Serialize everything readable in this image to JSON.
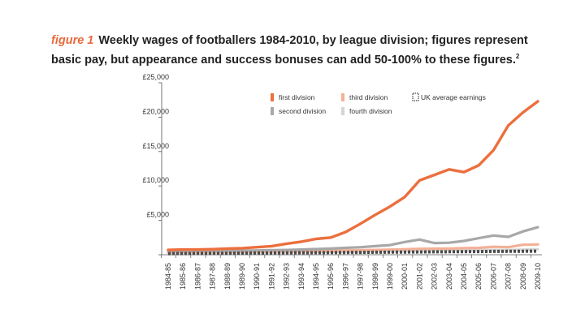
{
  "caption": {
    "figure_label": "figure 1",
    "text": "Weekly wages of footballers 1984-2010, by league division; figures represent basic pay, but appearance and success bonuses can add 50-100% to these figures.",
    "footnote": "2"
  },
  "chart_data": {
    "type": "line",
    "title": "Weekly wages of footballers 1984-2010, by league division",
    "xlabel": "",
    "ylabel": "",
    "ylim": [
      0,
      25000
    ],
    "y_ticks": [
      0,
      5000,
      10000,
      15000,
      20000,
      25000
    ],
    "y_tick_labels": [
      "",
      "£5,000",
      "£10,000",
      "£15,000",
      "£20,000",
      "£25,000"
    ],
    "grid": false,
    "legend_placement": "top",
    "categories": [
      "1984-85",
      "1985-86",
      "1986-87",
      "1987-88",
      "1988-89",
      "1989-90",
      "1990-91",
      "1991-92",
      "1992-93",
      "1993-94",
      "1994-95",
      "1995-96",
      "1996-97",
      "1997-98",
      "1998-99",
      "1999-00",
      "2000-01",
      "2001-02",
      "2002-03",
      "2003-04",
      "2004-05",
      "2005-06",
      "2006-07",
      "2007-08",
      "2008-09",
      "2009-10"
    ],
    "series": [
      {
        "name": "first division",
        "color": "#ec6f3d",
        "style": "solid",
        "width": 3.4,
        "values": [
          700,
          750,
          750,
          800,
          900,
          950,
          1100,
          1250,
          1600,
          1900,
          2300,
          2500,
          3300,
          4500,
          5800,
          7000,
          8400,
          10800,
          11600,
          12400,
          12000,
          13000,
          15200,
          18800,
          20700,
          22300
        ]
      },
      {
        "name": "second division",
        "color": "#a8a8a8",
        "style": "solid",
        "width": 3.2,
        "values": [
          500,
          520,
          540,
          560,
          580,
          600,
          630,
          660,
          700,
          760,
          830,
          900,
          1000,
          1100,
          1250,
          1400,
          1850,
          2200,
          1700,
          1750,
          2000,
          2400,
          2800,
          2600,
          3400,
          4000
        ]
      },
      {
        "name": "third division",
        "color": "#f3b197",
        "style": "solid",
        "width": 3.2,
        "values": [
          350,
          360,
          370,
          380,
          390,
          410,
          430,
          450,
          480,
          510,
          540,
          580,
          620,
          660,
          700,
          740,
          800,
          860,
          880,
          900,
          950,
          1000,
          1150,
          1100,
          1450,
          1500
        ]
      },
      {
        "name": "fourth division",
        "color": "#d5d5d5",
        "style": "solid",
        "width": 3.0,
        "values": [
          250,
          260,
          270,
          280,
          290,
          300,
          310,
          320,
          340,
          360,
          380,
          400,
          420,
          450,
          480,
          510,
          540,
          570,
          590,
          610,
          640,
          670,
          710,
          700,
          760,
          800
        ]
      },
      {
        "name": "UK average earnings",
        "color": "#4a4a4a",
        "style": "dotted",
        "width": 4,
        "values": [
          170,
          180,
          190,
          200,
          215,
          230,
          250,
          265,
          280,
          295,
          305,
          315,
          330,
          345,
          360,
          375,
          390,
          405,
          420,
          435,
          450,
          465,
          480,
          495,
          510,
          520
        ]
      }
    ]
  }
}
